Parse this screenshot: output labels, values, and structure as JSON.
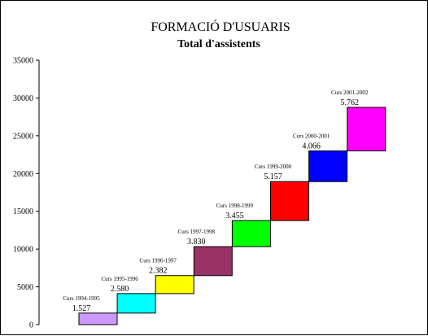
{
  "chart_data": {
    "type": "bar",
    "variant": "waterfall",
    "title": "FORMACIÓ D'USUARIS",
    "subtitle": "Total d'assistents",
    "xlabel": "",
    "ylabel": "",
    "ylim": [
      0,
      35000
    ],
    "yticks": [
      "0",
      "5000",
      "10000",
      "15000",
      "20000",
      "25000",
      "30000",
      "35000"
    ],
    "grid": false,
    "legend": "none",
    "categories": [
      "Curs 1994-1995",
      "Curs 1995-1996",
      "Curs 1996-1997",
      "Curs 1997-1998",
      "Curs 1998-1999",
      "Curs 1999-2000",
      "Curs 2000-2001",
      "Curs 2001-2002"
    ],
    "value_labels": [
      "1.527",
      "2.580",
      "2.382",
      "3.830",
      "3.455",
      "5.157",
      "4.066",
      "5.762"
    ],
    "values": [
      1527,
      2580,
      2382,
      3830,
      3455,
      5157,
      4066,
      5762
    ],
    "colors": [
      "#cc99ff",
      "#00ffff",
      "#ffff00",
      "#993366",
      "#00ff00",
      "#ff0000",
      "#0000ff",
      "#ff00ff"
    ]
  }
}
